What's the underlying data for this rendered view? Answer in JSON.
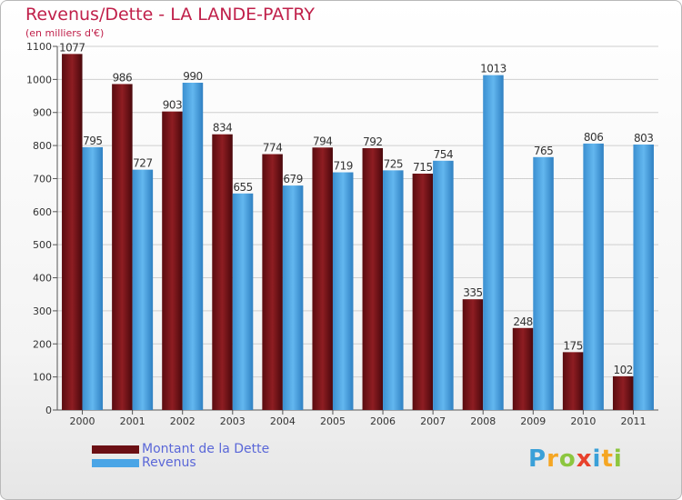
{
  "title": "Revenus/Dette - LA LANDE-PATRY",
  "subtitle": "(en milliers d'€)",
  "colors": {
    "debt": "#6b0f14",
    "revenue": "#4aa5e6",
    "title": "#c0204a",
    "legend_text": "#5a67d8"
  },
  "chart_data": {
    "type": "bar",
    "title": "Revenus/Dette - LA LANDE-PATRY",
    "ylabel": "(en milliers d'€)",
    "xlabel": "",
    "ylim": [
      0,
      1100
    ],
    "yticks": [
      0,
      100,
      200,
      300,
      400,
      500,
      600,
      700,
      800,
      900,
      1000,
      1100
    ],
    "categories": [
      "2000",
      "2001",
      "2002",
      "2003",
      "2004",
      "2005",
      "2006",
      "2007",
      "2008",
      "2009",
      "2010",
      "2011"
    ],
    "series": [
      {
        "name": "Montant de la Dette",
        "values": [
          1077,
          986,
          903,
          834,
          774,
          794,
          792,
          715,
          335,
          248,
          175,
          102
        ]
      },
      {
        "name": "Revenus",
        "values": [
          795,
          727,
          990,
          655,
          679,
          719,
          725,
          754,
          1013,
          765,
          806,
          803
        ]
      }
    ],
    "grid": true,
    "legend": "bottom-left"
  },
  "legend": {
    "debt_label": "Montant de la Dette",
    "revenue_label": "Revenus"
  },
  "logo": {
    "letters": [
      "P",
      "r",
      "o",
      "x",
      "i",
      "t",
      "i"
    ],
    "colors": [
      "#3aa0d8",
      "#f5a623",
      "#8cc63f",
      "#e8412c",
      "#3aa0d8",
      "#f5a623",
      "#8cc63f"
    ]
  }
}
